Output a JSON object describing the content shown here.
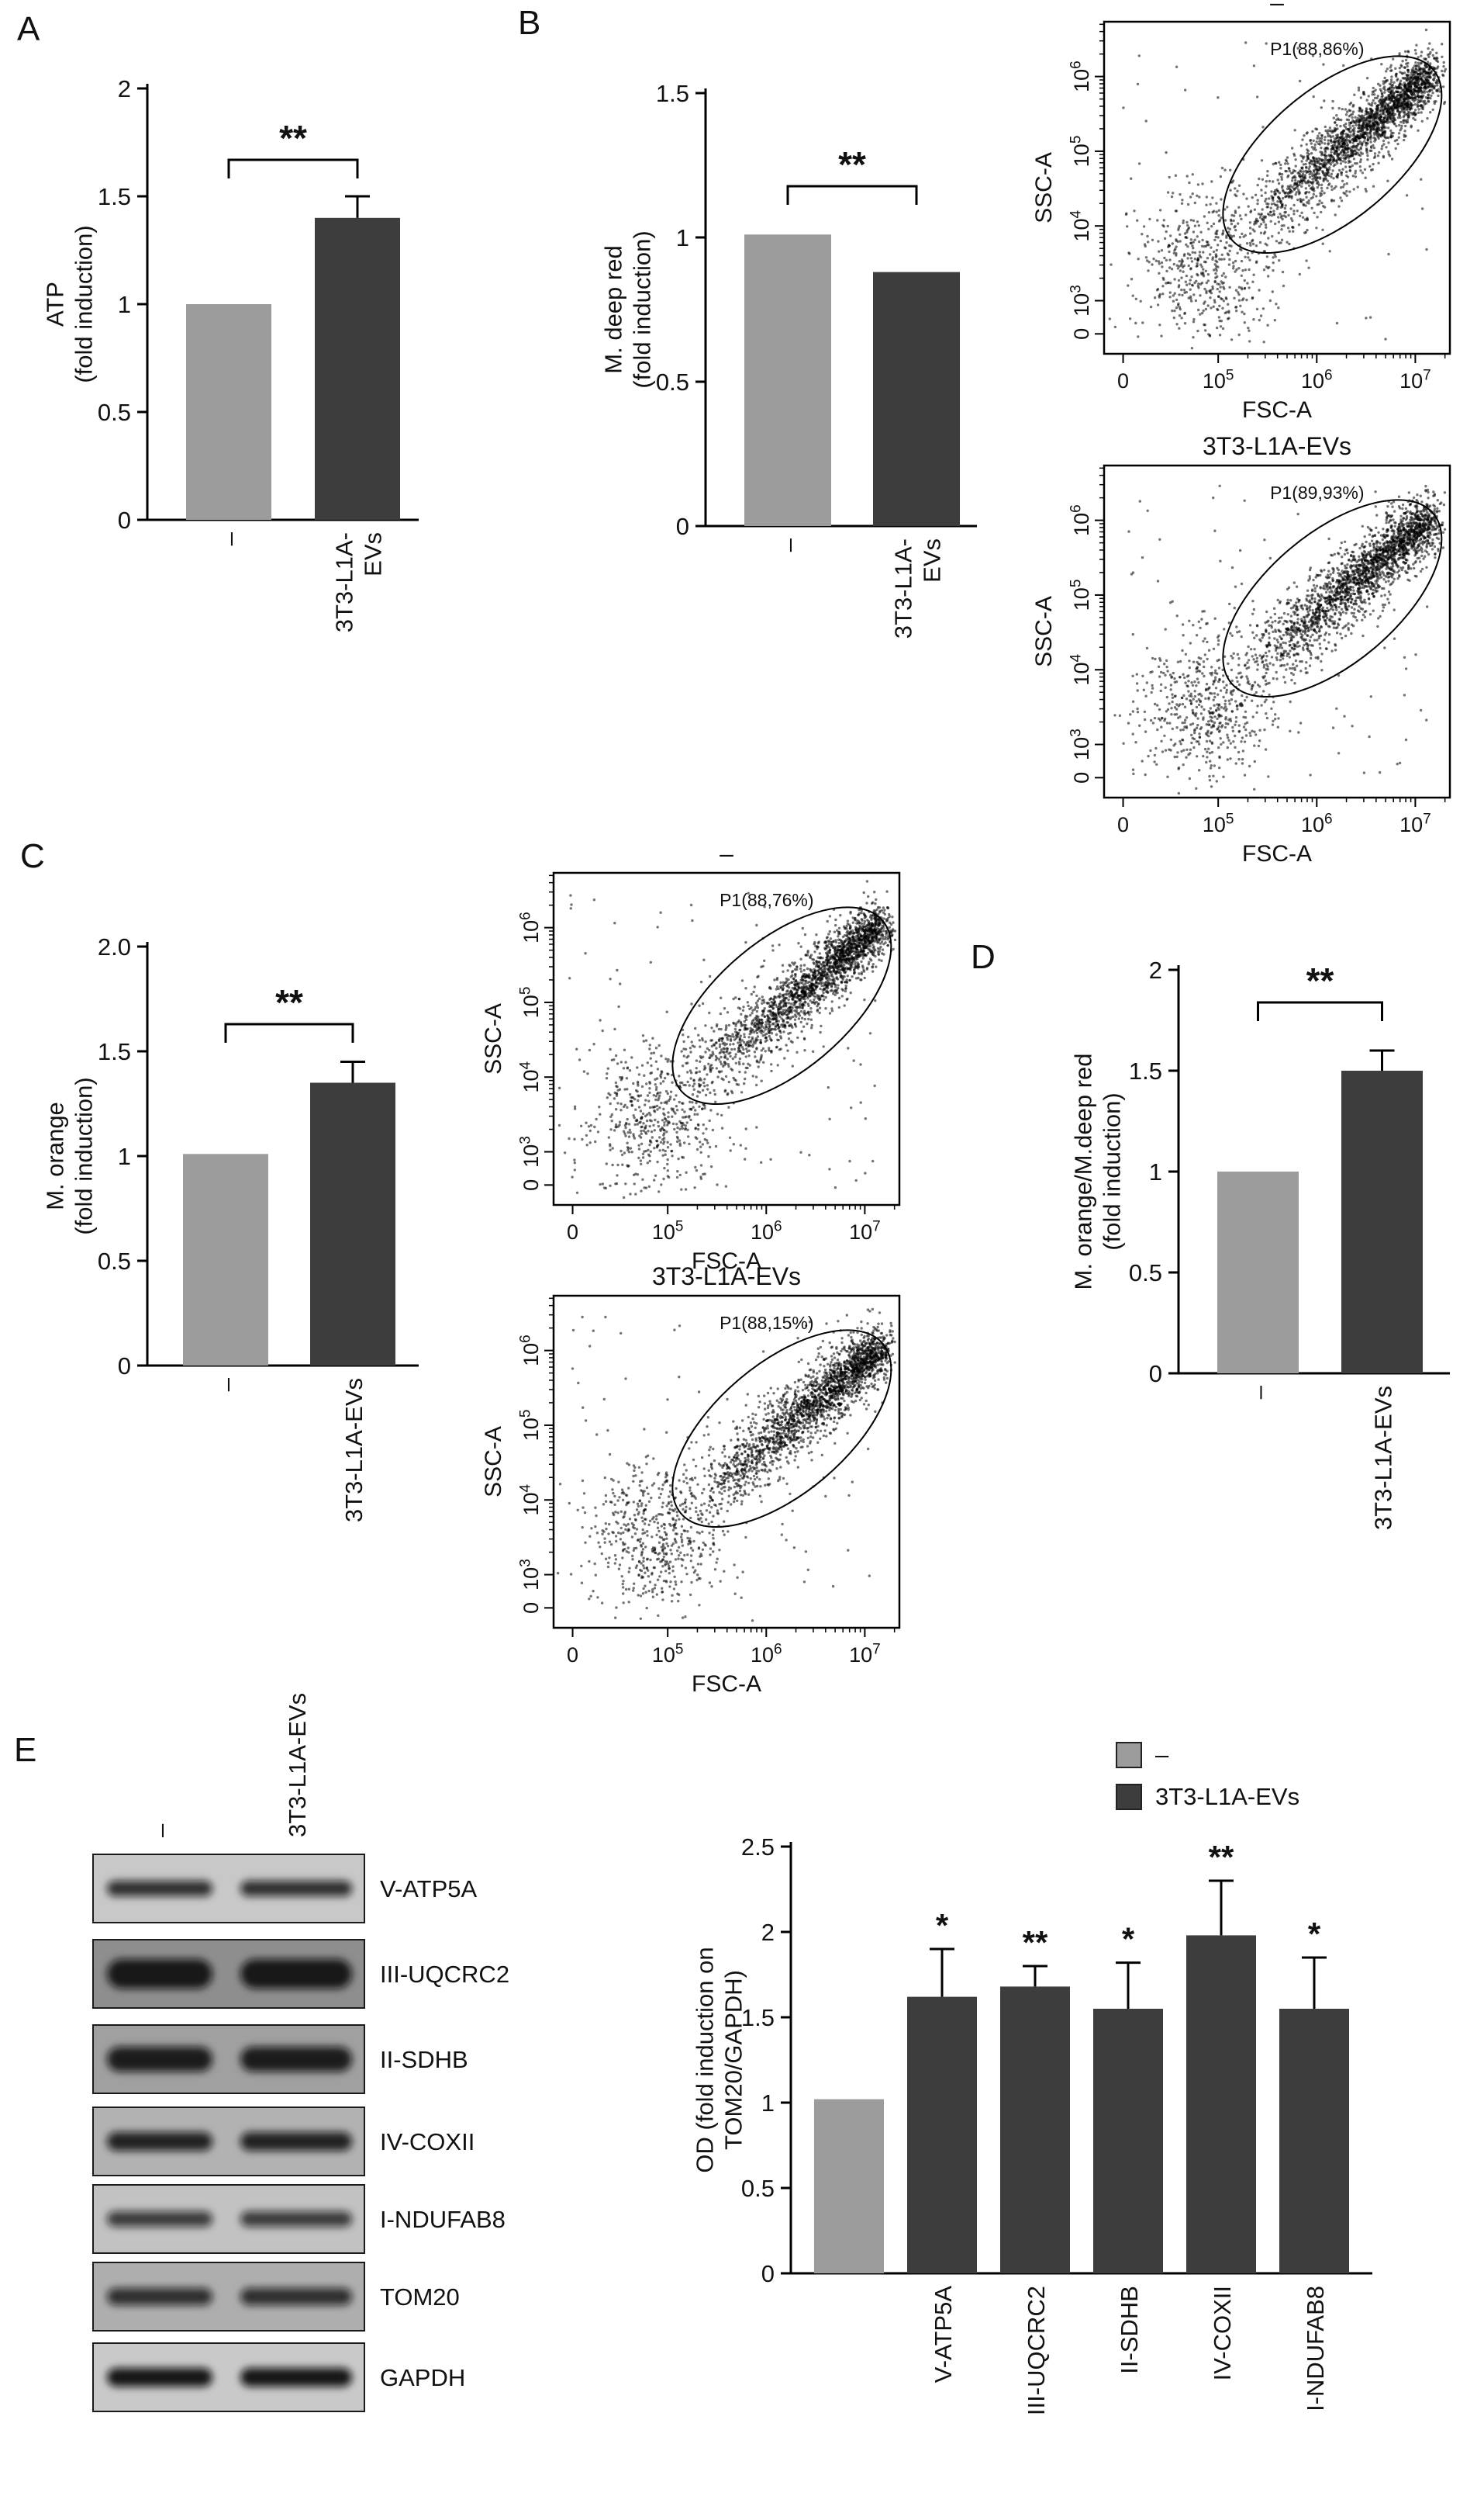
{
  "panels": {
    "A": {
      "label": "A"
    },
    "B": {
      "label": "B"
    },
    "C": {
      "label": "C"
    },
    "D": {
      "label": "D"
    },
    "E": {
      "label": "E"
    }
  },
  "colors": {
    "control_bar": "#9c9c9c",
    "treatment_bar": "#3d3d3d",
    "axis": "#000000"
  },
  "chart_data": [
    {
      "id": "bar-A",
      "type": "bar",
      "ylabel_lines": [
        "ATP",
        "(fold induction)"
      ],
      "ylim": [
        0,
        2
      ],
      "yticks": [
        {
          "v": 0,
          "t": "0"
        },
        {
          "v": 0.5,
          "t": "0.5"
        },
        {
          "v": 1,
          "t": "1"
        },
        {
          "v": 1.5,
          "t": "1.5"
        },
        {
          "v": 2,
          "t": "2"
        }
      ],
      "bars": [
        {
          "category_lines": [
            "–"
          ],
          "value": 1.0,
          "error": 0,
          "color": "#9c9c9c"
        },
        {
          "category_lines": [
            "3T3-L1A-",
            "EVs"
          ],
          "value": 1.4,
          "error": 0.1,
          "color": "#3d3d3d"
        }
      ],
      "significance": {
        "label": "**",
        "between": [
          0,
          1
        ]
      }
    },
    {
      "id": "bar-B",
      "type": "bar",
      "ylabel_lines": [
        "M. deep red",
        "(fold induction)"
      ],
      "ylim": [
        0,
        1.5
      ],
      "yticks": [
        {
          "v": 0,
          "t": "0"
        },
        {
          "v": 0.5,
          "t": "0.5"
        },
        {
          "v": 1,
          "t": "1"
        },
        {
          "v": 1.5,
          "t": "1.5"
        }
      ],
      "bars": [
        {
          "category_lines": [
            "–"
          ],
          "value": 1.01,
          "error": 0,
          "color": "#9c9c9c"
        },
        {
          "category_lines": [
            "3T3-L1A-",
            "EVs"
          ],
          "value": 0.88,
          "error": 0,
          "color": "#3d3d3d"
        }
      ],
      "significance": {
        "label": "**",
        "between": [
          0,
          1
        ]
      }
    },
    {
      "id": "flow-B-control",
      "type": "scatter",
      "title": "–",
      "gate_label": "P1(88,86%)",
      "xlabel": "FSC-A",
      "ylabel": "SSC-A",
      "xticks": [
        {
          "t": "0"
        },
        {
          "t": "10",
          "e": "5"
        },
        {
          "t": "10",
          "e": "6"
        },
        {
          "t": "10",
          "e": "7"
        }
      ],
      "yticks": [
        {
          "t": "0"
        },
        {
          "t": "10",
          "e": "3"
        },
        {
          "t": "10",
          "e": "4"
        },
        {
          "t": "10",
          "e": "5"
        },
        {
          "t": "10",
          "e": "6"
        }
      ],
      "seed": 7
    },
    {
      "id": "flow-B-treated",
      "type": "scatter",
      "title": "3T3-L1A-EVs",
      "gate_label": "P1(89,93%)",
      "xlabel": "FSC-A",
      "ylabel": "SSC-A",
      "xticks": [
        {
          "t": "0"
        },
        {
          "t": "10",
          "e": "5"
        },
        {
          "t": "10",
          "e": "6"
        },
        {
          "t": "10",
          "e": "7"
        }
      ],
      "yticks": [
        {
          "t": "0"
        },
        {
          "t": "10",
          "e": "3"
        },
        {
          "t": "10",
          "e": "4"
        },
        {
          "t": "10",
          "e": "5"
        },
        {
          "t": "10",
          "e": "6"
        }
      ],
      "seed": 13
    },
    {
      "id": "bar-C",
      "type": "bar",
      "ylabel_lines": [
        "M. orange",
        "(fold induction)"
      ],
      "ylim": [
        0,
        2
      ],
      "yticks": [
        {
          "v": 0,
          "t": "0"
        },
        {
          "v": 0.5,
          "t": "0.5"
        },
        {
          "v": 1,
          "t": "1"
        },
        {
          "v": 1.5,
          "t": "1.5"
        },
        {
          "v": 2,
          "t": "2.0"
        }
      ],
      "bars": [
        {
          "category_lines": [
            "–"
          ],
          "value": 1.01,
          "error": 0,
          "color": "#9c9c9c"
        },
        {
          "category_lines": [
            "3T3-L1A-EVs"
          ],
          "value": 1.35,
          "error": 0.1,
          "color": "#3d3d3d"
        }
      ],
      "significance": {
        "label": "**",
        "between": [
          0,
          1
        ]
      }
    },
    {
      "id": "flow-C-control",
      "type": "scatter",
      "title": "–",
      "gate_label": "P1(88,76%)",
      "xlabel": "FSC-A",
      "ylabel": "SSC-A",
      "xticks": [
        {
          "t": "0"
        },
        {
          "t": "10",
          "e": "5"
        },
        {
          "t": "10",
          "e": "6"
        },
        {
          "t": "10",
          "e": "7"
        }
      ],
      "yticks": [
        {
          "t": "0"
        },
        {
          "t": "10",
          "e": "3"
        },
        {
          "t": "10",
          "e": "4"
        },
        {
          "t": "10",
          "e": "5"
        },
        {
          "t": "10",
          "e": "6"
        }
      ],
      "seed": 21
    },
    {
      "id": "flow-C-treated",
      "type": "scatter",
      "title": "3T3-L1A-EVs",
      "gate_label": "P1(88,15%)",
      "xlabel": "FSC-A",
      "ylabel": "SSC-A",
      "xticks": [
        {
          "t": "0"
        },
        {
          "t": "10",
          "e": "5"
        },
        {
          "t": "10",
          "e": "6"
        },
        {
          "t": "10",
          "e": "7"
        }
      ],
      "yticks": [
        {
          "t": "0"
        },
        {
          "t": "10",
          "e": "3"
        },
        {
          "t": "10",
          "e": "4"
        },
        {
          "t": "10",
          "e": "5"
        },
        {
          "t": "10",
          "e": "6"
        }
      ],
      "seed": 29
    },
    {
      "id": "bar-D",
      "type": "bar",
      "ylabel_lines": [
        "M. orange/M.deep red",
        "(fold induction)"
      ],
      "ylim": [
        0,
        2
      ],
      "yticks": [
        {
          "v": 0,
          "t": "0"
        },
        {
          "v": 0.5,
          "t": "0.5"
        },
        {
          "v": 1,
          "t": "1"
        },
        {
          "v": 1.5,
          "t": "1.5"
        },
        {
          "v": 2,
          "t": "2"
        }
      ],
      "bars": [
        {
          "category_lines": [
            "–"
          ],
          "value": 1.0,
          "error": 0,
          "color": "#9c9c9c"
        },
        {
          "category_lines": [
            "3T3-L1A-EVs"
          ],
          "value": 1.5,
          "error": 0.1,
          "color": "#3d3d3d"
        }
      ],
      "significance": {
        "label": "**",
        "between": [
          0,
          1
        ]
      }
    },
    {
      "id": "western-blots",
      "type": "western_blot",
      "lane_labels": [
        "–",
        "3T3-L1A-EVs"
      ],
      "rows": [
        {
          "label": "V-ATP5A"
        },
        {
          "label": "III-UQCRC2"
        },
        {
          "label": "II-SDHB"
        },
        {
          "label": "IV-COXII"
        },
        {
          "label": "I-NDUFAB8"
        },
        {
          "label": "TOM20"
        },
        {
          "label": "GAPDH"
        }
      ]
    },
    {
      "id": "bar-E",
      "type": "bar",
      "ylabel_lines": [
        "OD (fold induction on",
        "TOM20/GAPDH)"
      ],
      "ylim": [
        0,
        2.5
      ],
      "yticks": [
        {
          "v": 0,
          "t": "0"
        },
        {
          "v": 0.5,
          "t": "0.5"
        },
        {
          "v": 1,
          "t": "1"
        },
        {
          "v": 1.5,
          "t": "1.5"
        },
        {
          "v": 2,
          "t": "2"
        },
        {
          "v": 2.5,
          "t": "2.5"
        }
      ],
      "bars": [
        {
          "category_lines": [],
          "value": 1.02,
          "error": 0,
          "color": "#9c9c9c",
          "sig": ""
        },
        {
          "category_lines": [
            "V-ATP5A"
          ],
          "value": 1.62,
          "error": 0.28,
          "color": "#3d3d3d",
          "sig": "*"
        },
        {
          "category_lines": [
            "III-UQCRC2"
          ],
          "value": 1.68,
          "error": 0.12,
          "color": "#3d3d3d",
          "sig": "**"
        },
        {
          "category_lines": [
            "II-SDHB"
          ],
          "value": 1.55,
          "error": 0.27,
          "color": "#3d3d3d",
          "sig": "*"
        },
        {
          "category_lines": [
            "IV-COXII"
          ],
          "value": 1.98,
          "error": 0.32,
          "color": "#3d3d3d",
          "sig": "**"
        },
        {
          "category_lines": [
            "I-NDUFAB8"
          ],
          "value": 1.55,
          "error": 0.3,
          "color": "#3d3d3d",
          "sig": "*"
        }
      ],
      "legend": [
        {
          "label": "–",
          "color": "#9c9c9c"
        },
        {
          "label": "3T3-L1A-EVs",
          "color": "#3d3d3d"
        }
      ]
    }
  ]
}
